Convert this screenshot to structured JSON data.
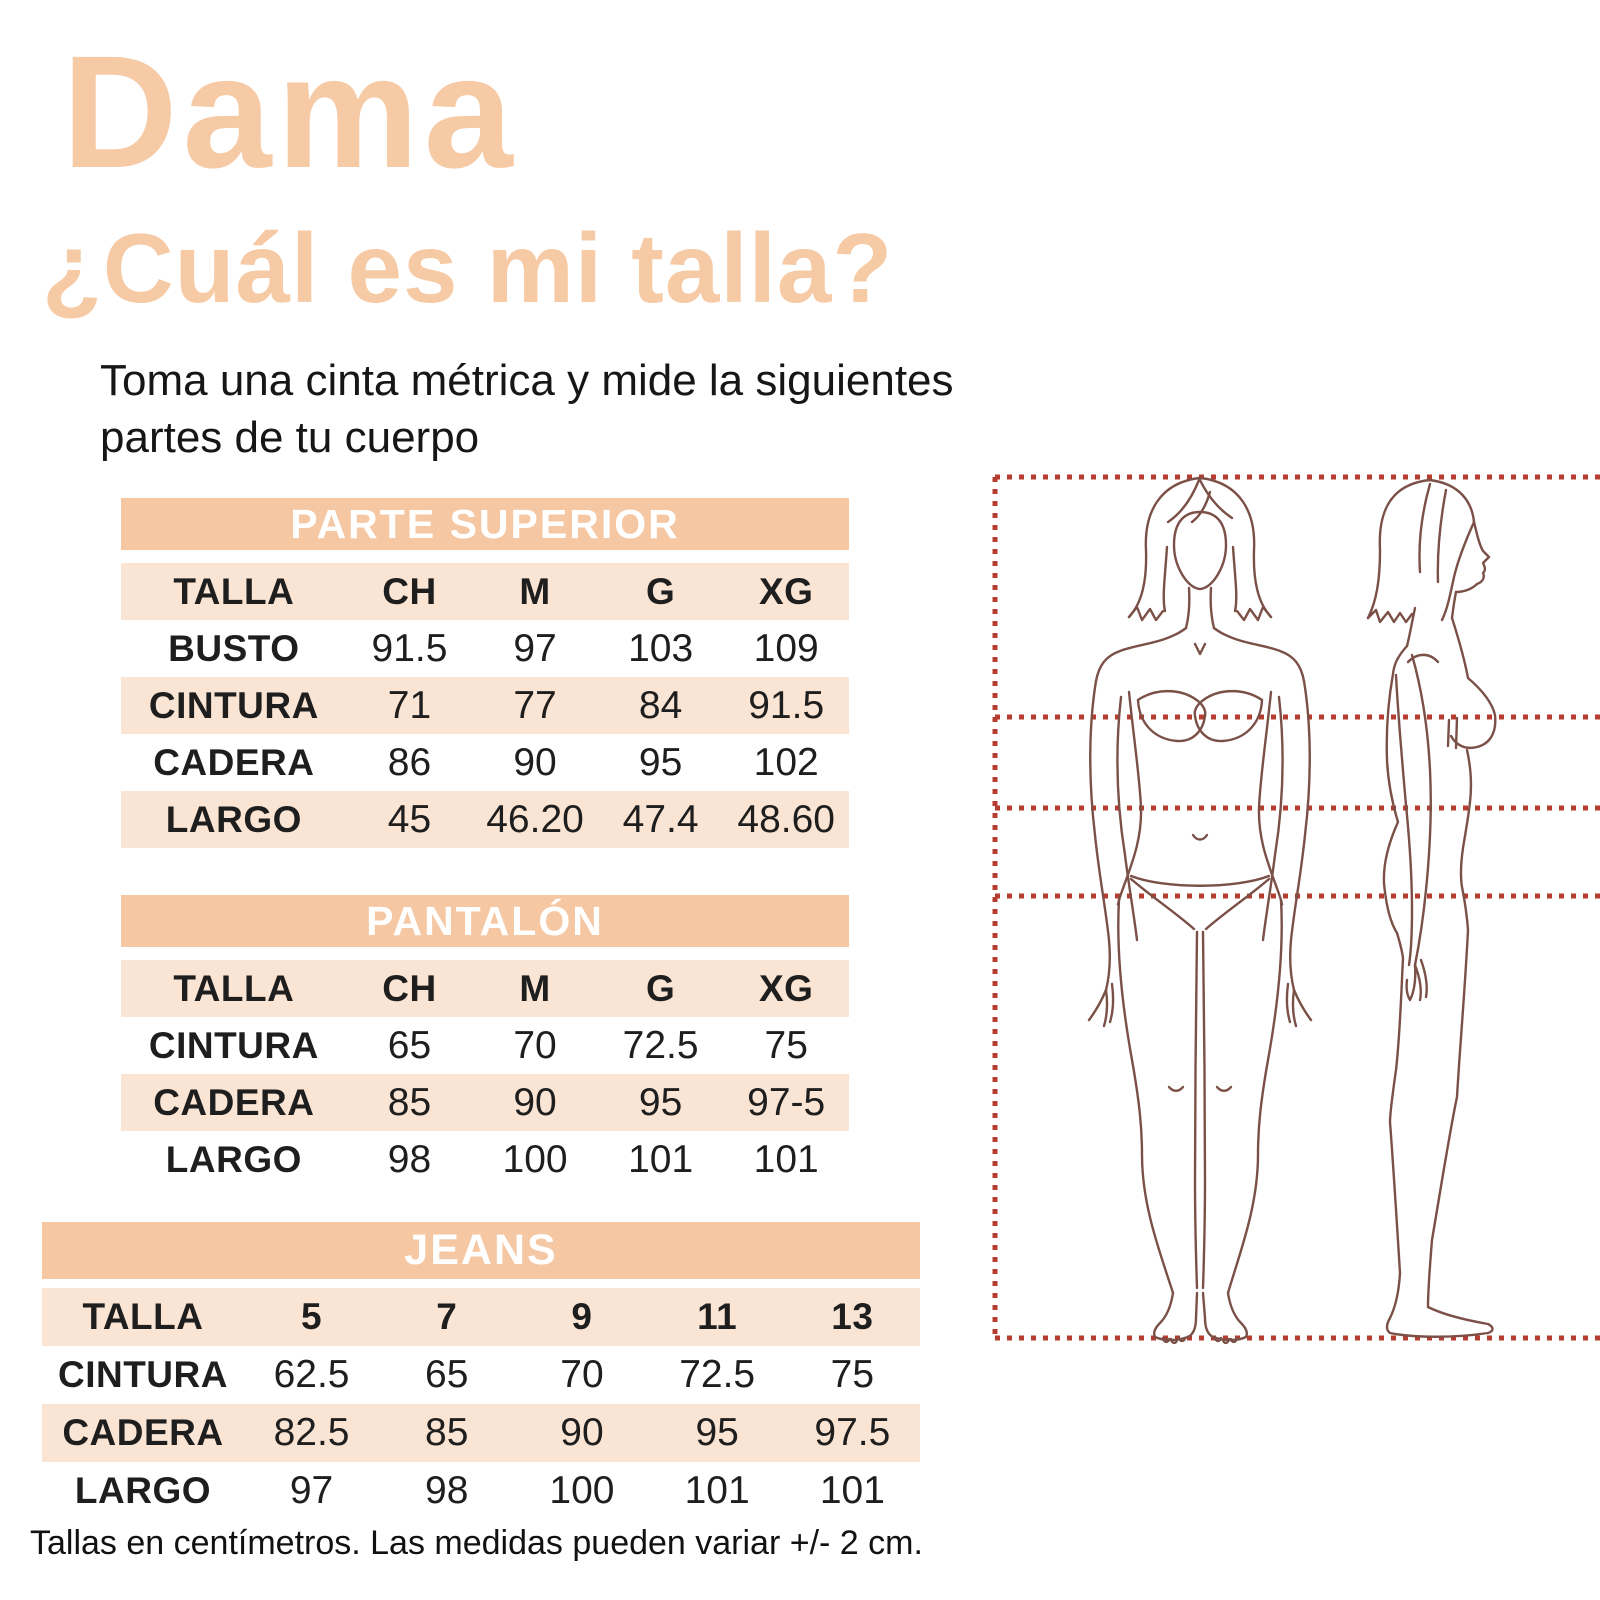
{
  "page": {
    "title": "Dama",
    "subtitle": "¿Cuál es mi talla?",
    "intro_line1": "Toma una cinta métrica y mide la siguientes",
    "intro_line2": "partes de tu cuerpo",
    "footnote": "Tallas en centímetros. Las medidas pueden variar +/- 2 cm."
  },
  "colors": {
    "accent_peach": "#f6caa5",
    "band_peach": "#f5c7a3",
    "row_peach": "#fae4d3",
    "text_dark": "#1e1e1e",
    "dotted_line_red": "#b63c30",
    "figure_outline_brown": "#7a5047"
  },
  "tables": [
    {
      "title": "PARTE SUPERIOR",
      "columns": [
        "TALLA",
        "CH",
        "M",
        "G",
        "XG"
      ],
      "rows": [
        {
          "label": "BUSTO",
          "values": [
            "91.5",
            "97",
            "103",
            "109"
          ]
        },
        {
          "label": "CINTURA",
          "values": [
            "71",
            "77",
            "84",
            "91.5"
          ]
        },
        {
          "label": "CADERA",
          "values": [
            "86",
            "90",
            "95",
            "102"
          ]
        },
        {
          "label": "LARGO",
          "values": [
            "45",
            "46.20",
            "47.4",
            "48.60"
          ]
        }
      ]
    },
    {
      "title": "PANTALÓN",
      "columns": [
        "TALLA",
        "CH",
        "M",
        "G",
        "XG"
      ],
      "rows": [
        {
          "label": "CINTURA",
          "values": [
            "65",
            "70",
            "72.5",
            "75"
          ]
        },
        {
          "label": "CADERA",
          "values": [
            "85",
            "90",
            "95",
            "97-5"
          ]
        },
        {
          "label": "LARGO",
          "values": [
            "98",
            "100",
            "101",
            "101"
          ]
        }
      ]
    },
    {
      "title": "JEANS",
      "columns": [
        "TALLA",
        "5",
        "7",
        "9",
        "11",
        "13"
      ],
      "rows": [
        {
          "label": "CINTURA",
          "values": [
            "62.5",
            "65",
            "70",
            "72.5",
            "75"
          ]
        },
        {
          "label": "CADERA",
          "values": [
            "82.5",
            "85",
            "90",
            "95",
            "97.5"
          ]
        },
        {
          "label": "LARGO",
          "values": [
            "97",
            "98",
            "100",
            "101",
            "101"
          ]
        }
      ]
    }
  ],
  "figure": {
    "name": "woman-body-measurement-diagram",
    "views": [
      "front",
      "side"
    ]
  }
}
